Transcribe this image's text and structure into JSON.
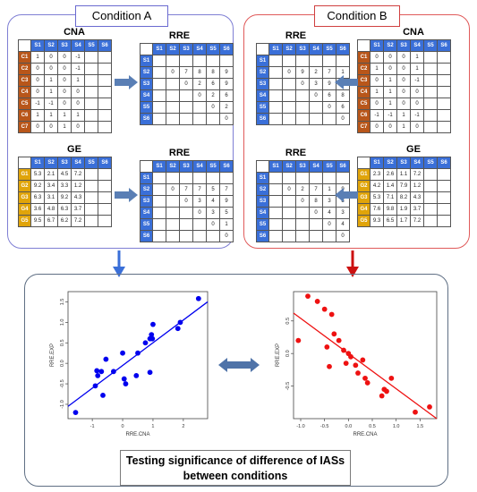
{
  "conditionA": {
    "label": "Condition A",
    "cna": {
      "title": "CNA",
      "cols": [
        "S1",
        "S2",
        "S3",
        "S4",
        "S5",
        "S6"
      ],
      "rows": [
        {
          "name": "C1",
          "vals": [
            "1",
            "0",
            "0",
            "-1",
            "",
            ""
          ]
        },
        {
          "name": "C2",
          "vals": [
            "0",
            "0",
            "0",
            "-1",
            "",
            ""
          ]
        },
        {
          "name": "C3",
          "vals": [
            "0",
            "1",
            "0",
            "1",
            "",
            ""
          ]
        },
        {
          "name": "C4",
          "vals": [
            "0",
            "1",
            "0",
            "0",
            "",
            ""
          ]
        },
        {
          "name": "C5",
          "vals": [
            "-1",
            "-1",
            "0",
            "0",
            "",
            ""
          ]
        },
        {
          "name": "C6",
          "vals": [
            "1",
            "1",
            "1",
            "1",
            "",
            ""
          ]
        },
        {
          "name": "C7",
          "vals": [
            "0",
            "0",
            "1",
            "0",
            "",
            ""
          ]
        }
      ]
    },
    "rre_cna": {
      "title": "RRE",
      "cols": [
        "S1",
        "S2",
        "S3",
        "S4",
        "S5",
        "S6"
      ],
      "rows": [
        {
          "name": "S1",
          "vals": [
            "",
            "",
            "",
            "",
            "",
            ""
          ]
        },
        {
          "name": "S2",
          "vals": [
            "",
            "0",
            "7",
            "8",
            "8",
            "9"
          ]
        },
        {
          "name": "S3",
          "vals": [
            "",
            "",
            "0",
            "2",
            "6",
            "9"
          ]
        },
        {
          "name": "S4",
          "vals": [
            "",
            "",
            "",
            "0",
            "2",
            "6"
          ]
        },
        {
          "name": "S5",
          "vals": [
            "",
            "",
            "",
            "",
            "0",
            "2"
          ]
        },
        {
          "name": "S6",
          "vals": [
            "",
            "",
            "",
            "",
            "",
            "0"
          ]
        }
      ]
    },
    "ge": {
      "title": "GE",
      "cols": [
        "S1",
        "S2",
        "S3",
        "S4",
        "S5",
        "S6"
      ],
      "rows": [
        {
          "name": "G1",
          "vals": [
            "5.3",
            "2.1",
            "4.5",
            "7.2",
            "",
            ""
          ]
        },
        {
          "name": "G2",
          "vals": [
            "9.2",
            "3.4",
            "3.3",
            "1.2",
            "",
            ""
          ]
        },
        {
          "name": "G3",
          "vals": [
            "6.3",
            "3.1",
            "9.2",
            "4.3",
            "",
            ""
          ]
        },
        {
          "name": "G4",
          "vals": [
            "3.6",
            "4.8",
            "6.3",
            "3.7",
            "",
            ""
          ]
        },
        {
          "name": "G5",
          "vals": [
            "9.5",
            "6.7",
            "6.2",
            "7.2",
            "",
            ""
          ]
        }
      ]
    },
    "rre_ge": {
      "title": "RRE",
      "cols": [
        "S1",
        "S2",
        "S3",
        "S4",
        "S5",
        "S6"
      ],
      "rows": [
        {
          "name": "S1",
          "vals": [
            "",
            "",
            "",
            "",
            "",
            ""
          ]
        },
        {
          "name": "S2",
          "vals": [
            "",
            "0",
            "7",
            "7",
            "5",
            "7"
          ]
        },
        {
          "name": "S3",
          "vals": [
            "",
            "",
            "0",
            "3",
            "4",
            "9"
          ]
        },
        {
          "name": "S4",
          "vals": [
            "",
            "",
            "",
            "0",
            "3",
            "5"
          ]
        },
        {
          "name": "S5",
          "vals": [
            "",
            "",
            "",
            "",
            "0",
            "1"
          ]
        },
        {
          "name": "S6",
          "vals": [
            "",
            "",
            "",
            "",
            "",
            "0"
          ]
        }
      ]
    }
  },
  "conditionB": {
    "label": "Condition B",
    "rre_cna": {
      "title": "RRE",
      "cols": [
        "S1",
        "S2",
        "S3",
        "S4",
        "S5",
        "S6"
      ],
      "rows": [
        {
          "name": "S1",
          "vals": [
            "",
            "",
            "",
            "",
            "",
            ""
          ]
        },
        {
          "name": "S2",
          "vals": [
            "",
            "0",
            "9",
            "2",
            "7",
            "1"
          ]
        },
        {
          "name": "S3",
          "vals": [
            "",
            "",
            "0",
            "3",
            "9",
            "2"
          ]
        },
        {
          "name": "S4",
          "vals": [
            "",
            "",
            "",
            "0",
            "6",
            "8"
          ]
        },
        {
          "name": "S5",
          "vals": [
            "",
            "",
            "",
            "",
            "0",
            "6"
          ]
        },
        {
          "name": "S6",
          "vals": [
            "",
            "",
            "",
            "",
            "",
            "0"
          ]
        }
      ]
    },
    "cna": {
      "title": "CNA",
      "cols": [
        "S1",
        "S2",
        "S3",
        "S4",
        "S5",
        "S6"
      ],
      "rows": [
        {
          "name": "C1",
          "vals": [
            "0",
            "0",
            "0",
            "1",
            "",
            ""
          ]
        },
        {
          "name": "C2",
          "vals": [
            "1",
            "0",
            "0",
            "1",
            "",
            ""
          ]
        },
        {
          "name": "C3",
          "vals": [
            "0",
            "1",
            "0",
            "-1",
            "",
            ""
          ]
        },
        {
          "name": "C4",
          "vals": [
            "1",
            "1",
            "0",
            "0",
            "",
            ""
          ]
        },
        {
          "name": "C5",
          "vals": [
            "0",
            "1",
            "0",
            "0",
            "",
            ""
          ]
        },
        {
          "name": "C6",
          "vals": [
            "-1",
            "-1",
            "1",
            "-1",
            "",
            ""
          ]
        },
        {
          "name": "C7",
          "vals": [
            "0",
            "0",
            "1",
            "0",
            "",
            ""
          ]
        }
      ]
    },
    "rre_ge": {
      "title": "RRE",
      "cols": [
        "S1",
        "S2",
        "S3",
        "S4",
        "S5",
        "S6"
      ],
      "rows": [
        {
          "name": "S1",
          "vals": [
            "",
            "",
            "",
            "",
            "",
            ""
          ]
        },
        {
          "name": "S2",
          "vals": [
            "",
            "0",
            "2",
            "7",
            "1",
            "9"
          ]
        },
        {
          "name": "S3",
          "vals": [
            "",
            "",
            "0",
            "8",
            "3",
            "8"
          ]
        },
        {
          "name": "S4",
          "vals": [
            "",
            "",
            "",
            "0",
            "4",
            "3"
          ]
        },
        {
          "name": "S5",
          "vals": [
            "",
            "",
            "",
            "",
            "0",
            "4"
          ]
        },
        {
          "name": "S6",
          "vals": [
            "",
            "",
            "",
            "",
            "",
            "0"
          ]
        }
      ]
    },
    "ge": {
      "title": "GE",
      "cols": [
        "S1",
        "S2",
        "S3",
        "S4",
        "S5",
        "S6"
      ],
      "rows": [
        {
          "name": "G1",
          "vals": [
            "2.3",
            "2.6",
            "1.1",
            "7.2",
            "",
            ""
          ]
        },
        {
          "name": "G2",
          "vals": [
            "4.2",
            "1.4",
            "7.9",
            "1.2",
            "",
            ""
          ]
        },
        {
          "name": "G3",
          "vals": [
            "5.3",
            "7.1",
            "8.2",
            "4.3",
            "",
            ""
          ]
        },
        {
          "name": "G4",
          "vals": [
            "7.6",
            "9.8",
            "1.9",
            "3.7",
            "",
            ""
          ]
        },
        {
          "name": "G5",
          "vals": [
            "9.3",
            "6.5",
            "1.7",
            "7.2",
            "",
            ""
          ]
        }
      ]
    }
  },
  "colors": {
    "condA_border": "#7f7fd4",
    "condB_border": "#e05a5a",
    "header_blue": "#3a6fd8",
    "cna_rowhead": "#b8561a",
    "ge_rowhead": "#e0a40a",
    "arrow_blue": "#3a6fd8",
    "arrow_red": "#cc1111",
    "bottom_border": "#5f6f84"
  },
  "chart_data": [
    {
      "type": "scatter",
      "xlabel": "RRE.CNA",
      "ylabel": "RRE.EXP",
      "color": "#0000ee",
      "xlim": [
        -1.8,
        2.8
      ],
      "ylim": [
        -1.35,
        1.75
      ],
      "xticks": [
        -1,
        0,
        1,
        2
      ],
      "yticks": [
        -1.0,
        -0.5,
        0.0,
        0.5,
        1.0,
        1.5
      ],
      "ytick_labels": [
        "-1.0",
        "-0.5",
        "0.0",
        "0.5",
        "1.0",
        "1.5"
      ],
      "points": [
        {
          "x": -1.55,
          "y": -1.2
        },
        {
          "x": -0.9,
          "y": -0.55
        },
        {
          "x": -0.82,
          "y": -0.3
        },
        {
          "x": -0.85,
          "y": -0.18
        },
        {
          "x": -0.65,
          "y": -0.78
        },
        {
          "x": -0.7,
          "y": -0.2
        },
        {
          "x": -0.55,
          "y": 0.1
        },
        {
          "x": -0.3,
          "y": -0.2
        },
        {
          "x": 0.0,
          "y": 0.25
        },
        {
          "x": 0.05,
          "y": -0.38
        },
        {
          "x": 0.1,
          "y": -0.5
        },
        {
          "x": 0.45,
          "y": -0.3
        },
        {
          "x": 0.5,
          "y": 0.25
        },
        {
          "x": 0.75,
          "y": 0.5
        },
        {
          "x": 0.9,
          "y": 0.6
        },
        {
          "x": 0.95,
          "y": 0.7
        },
        {
          "x": 0.98,
          "y": 0.6
        },
        {
          "x": 1.0,
          "y": 0.95
        },
        {
          "x": 0.9,
          "y": -0.22
        },
        {
          "x": 1.82,
          "y": 0.85
        },
        {
          "x": 1.9,
          "y": 1.0
        },
        {
          "x": 2.5,
          "y": 1.58
        }
      ],
      "fit": {
        "x1": -1.8,
        "y1": -1.05,
        "x2": 2.8,
        "y2": 1.5
      }
    },
    {
      "type": "scatter",
      "xlabel": "RRE.CNA",
      "ylabel": "RRE.EXP",
      "color": "#ee1111",
      "xlim": [
        -1.15,
        1.85
      ],
      "ylim": [
        -1.0,
        0.95
      ],
      "xticks": [
        -1.0,
        -0.5,
        0.0,
        0.5,
        1.0,
        1.5
      ],
      "xtick_labels": [
        "-1.0",
        "-0.5",
        "0.0",
        "0.5",
        "1.0",
        "1.5"
      ],
      "yticks": [
        -0.5,
        0.0,
        0.5
      ],
      "ytick_labels": [
        "-0.5",
        "0.0",
        "0.5"
      ],
      "points": [
        {
          "x": -0.85,
          "y": 0.88
        },
        {
          "x": -0.65,
          "y": 0.8
        },
        {
          "x": -1.05,
          "y": 0.2
        },
        {
          "x": -0.5,
          "y": 0.68
        },
        {
          "x": -0.35,
          "y": 0.6
        },
        {
          "x": -0.3,
          "y": 0.3
        },
        {
          "x": -0.2,
          "y": 0.2
        },
        {
          "x": -0.45,
          "y": 0.1
        },
        {
          "x": -0.1,
          "y": 0.05
        },
        {
          "x": -0.05,
          "y": -0.15
        },
        {
          "x": 0.0,
          "y": 0.0
        },
        {
          "x": 0.05,
          "y": -0.05
        },
        {
          "x": 0.15,
          "y": -0.18
        },
        {
          "x": 0.2,
          "y": -0.3
        },
        {
          "x": 0.3,
          "y": -0.1
        },
        {
          "x": 0.35,
          "y": -0.38
        },
        {
          "x": 0.4,
          "y": -0.45
        },
        {
          "x": -0.4,
          "y": -0.2
        },
        {
          "x": 0.7,
          "y": -0.65
        },
        {
          "x": 0.75,
          "y": -0.55
        },
        {
          "x": 0.8,
          "y": -0.58
        },
        {
          "x": 1.4,
          "y": -0.9
        },
        {
          "x": 1.7,
          "y": -0.82
        },
        {
          "x": 0.9,
          "y": -0.38
        }
      ],
      "fit": {
        "x1": -1.15,
        "y1": 0.62,
        "x2": 1.85,
        "y2": -1.0
      }
    }
  ],
  "bottom_label": "Testing significance of difference of IASs between conditions"
}
